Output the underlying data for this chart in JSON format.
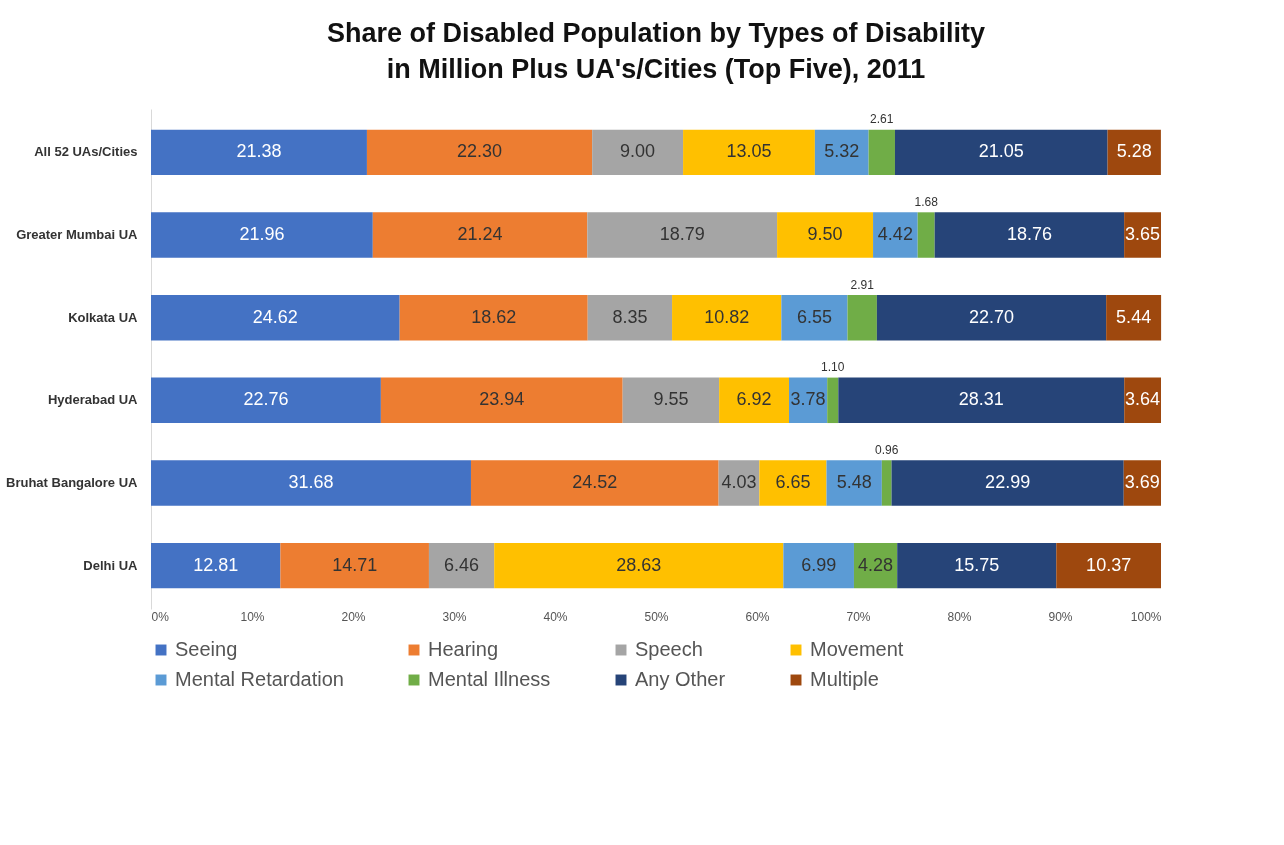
{
  "chart_data": {
    "type": "bar",
    "orientation": "horizontal",
    "stacked": true,
    "title": "Share of Disabled Population by Types of Disability in Million Plus UA's/Cities (Top Five), 2011",
    "categories": [
      "All 52 UAs/Cities",
      "Greater Mumbai UA",
      "Kolkata UA",
      "Hyderabad UA",
      "Bruhat Bangalore UA",
      "Delhi UA"
    ],
    "series": [
      {
        "name": "Seeing",
        "color": "#4472c4",
        "values": [
          21.38,
          21.96,
          24.62,
          22.76,
          31.68,
          12.81
        ],
        "value_labels": [
          "21.38",
          "21.96",
          "24.62",
          "22.76",
          "31.68",
          "12.81"
        ]
      },
      {
        "name": "Hearing",
        "color": "#ed7d31",
        "values": [
          22.3,
          21.24,
          18.62,
          23.94,
          24.52,
          14.71
        ],
        "value_labels": [
          "22.30",
          "21.24",
          "18.62",
          "23.94",
          "24.52",
          "14.71"
        ]
      },
      {
        "name": "Speech",
        "color": "#a5a5a5",
        "values": [
          9.0,
          18.79,
          8.35,
          9.55,
          4.03,
          6.46
        ],
        "value_labels": [
          "9.00",
          "18.79",
          "8.35",
          "9.55",
          "4.03",
          "6.46"
        ]
      },
      {
        "name": "Movement",
        "color": "#ffc000",
        "values": [
          13.05,
          9.5,
          10.82,
          6.92,
          6.65,
          28.63
        ],
        "value_labels": [
          "13.05",
          "9.50",
          "10.82",
          "6.92",
          "6.65",
          "28.63"
        ]
      },
      {
        "name": "Mental Retardation",
        "color": "#5b9bd5",
        "values": [
          5.32,
          4.42,
          6.55,
          3.78,
          5.48,
          6.99
        ],
        "value_labels": [
          "5.32",
          "4.42",
          "6.55",
          "3.78",
          "5.48",
          "6.99"
        ]
      },
      {
        "name": "Mental Illness",
        "color": "#70ad47",
        "values": [
          2.61,
          1.68,
          2.91,
          1.1,
          0.96,
          4.28
        ],
        "value_labels": [
          "2.61",
          "1.68",
          "2.91",
          "1.10",
          "0.96",
          "4.28"
        ]
      },
      {
        "name": "Any Other",
        "color": "#264478",
        "values": [
          21.05,
          18.76,
          22.7,
          28.31,
          22.99,
          15.75
        ],
        "value_labels": [
          "21.05",
          "18.76",
          "22.70",
          "28.31",
          "22.99",
          "15.75"
        ]
      },
      {
        "name": "Multiple",
        "color": "#9e480e",
        "values": [
          5.28,
          3.65,
          5.44,
          3.64,
          3.69,
          10.37
        ],
        "value_labels": [
          "5.28",
          "3.65",
          "5.44",
          "3.64",
          "3.69",
          "10.37"
        ]
      }
    ],
    "xlim": [
      0,
      100
    ],
    "xticks": [
      {
        "value": 0,
        "label": "0%"
      },
      {
        "value": 10,
        "label": "10%"
      },
      {
        "value": 20,
        "label": "20%"
      },
      {
        "value": 30,
        "label": "30%"
      },
      {
        "value": 40,
        "label": "40%"
      },
      {
        "value": 50,
        "label": "50%"
      },
      {
        "value": 60,
        "label": "60%"
      },
      {
        "value": 70,
        "label": "70%"
      },
      {
        "value": 80,
        "label": "80%"
      },
      {
        "value": 90,
        "label": "90%"
      },
      {
        "value": 100,
        "label": "100%"
      }
    ],
    "legend": "bottom",
    "grid": false
  }
}
